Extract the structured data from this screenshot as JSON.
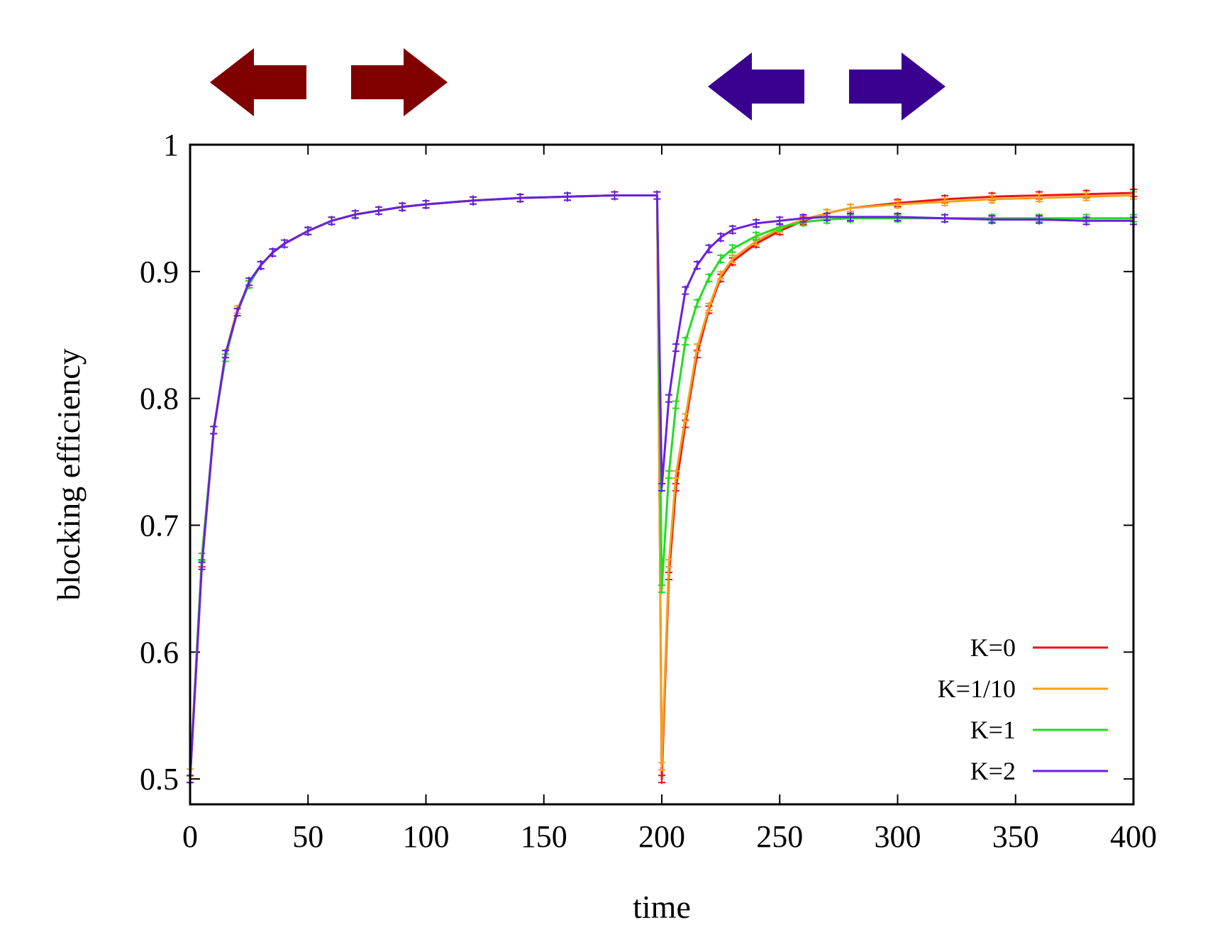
{
  "chart_data": {
    "type": "line",
    "title": "",
    "xlabel": "time",
    "ylabel": "blocking efficiency",
    "xlim": [
      0,
      400
    ],
    "ylim": [
      0.48,
      1.0
    ],
    "xticks": [
      0,
      50,
      100,
      150,
      200,
      250,
      300,
      350,
      400
    ],
    "yticks": [
      0.5,
      0.6,
      0.7,
      0.8,
      0.9,
      1.0
    ],
    "xtick_labels": [
      "0",
      "50",
      "100",
      "150",
      "200",
      "250",
      "300",
      "350",
      "400"
    ],
    "ytick_labels": [
      "0.5",
      "0.6",
      "0.7",
      "0.8",
      "0.9",
      "1"
    ],
    "legend_position": "bottom-right",
    "annotations": [
      {
        "type": "double-arrow",
        "color": "#800000",
        "time_center": 60
      },
      {
        "type": "double-arrow",
        "color": "#3a0090",
        "time_center": 272
      }
    ],
    "series": [
      {
        "name": "K=0",
        "color": "#ee1111",
        "x": [
          0,
          5,
          10,
          15,
          20,
          25,
          30,
          35,
          40,
          50,
          60,
          70,
          80,
          90,
          100,
          120,
          140,
          160,
          180,
          198,
          200,
          203,
          206,
          210,
          215,
          220,
          225,
          230,
          240,
          250,
          260,
          270,
          280,
          300,
          320,
          340,
          360,
          380,
          400
        ],
        "values": [
          0.5,
          0.67,
          0.775,
          0.835,
          0.87,
          0.89,
          0.905,
          0.915,
          0.922,
          0.932,
          0.94,
          0.945,
          0.948,
          0.951,
          0.953,
          0.956,
          0.958,
          0.959,
          0.96,
          0.96,
          0.5,
          0.66,
          0.73,
          0.78,
          0.835,
          0.87,
          0.895,
          0.908,
          0.922,
          0.932,
          0.94,
          0.946,
          0.95,
          0.954,
          0.957,
          0.959,
          0.96,
          0.961,
          0.962
        ]
      },
      {
        "name": "K=1/10",
        "color": "#f2a21b",
        "x": [
          0,
          5,
          10,
          15,
          20,
          25,
          30,
          35,
          40,
          50,
          60,
          70,
          80,
          90,
          100,
          120,
          140,
          160,
          180,
          198,
          200,
          203,
          206,
          210,
          215,
          220,
          225,
          230,
          240,
          250,
          260,
          270,
          280,
          300,
          320,
          340,
          360,
          380,
          400
        ],
        "values": [
          0.505,
          0.675,
          0.775,
          0.835,
          0.87,
          0.89,
          0.905,
          0.915,
          0.922,
          0.932,
          0.94,
          0.945,
          0.948,
          0.951,
          0.953,
          0.956,
          0.958,
          0.959,
          0.96,
          0.96,
          0.51,
          0.67,
          0.74,
          0.785,
          0.84,
          0.872,
          0.897,
          0.91,
          0.924,
          0.934,
          0.941,
          0.946,
          0.95,
          0.953,
          0.955,
          0.957,
          0.958,
          0.959,
          0.96
        ]
      },
      {
        "name": "K=1",
        "color": "#22dd22",
        "x": [
          0,
          5,
          10,
          15,
          20,
          25,
          30,
          35,
          40,
          50,
          60,
          70,
          80,
          90,
          100,
          120,
          140,
          160,
          180,
          198,
          200,
          203,
          206,
          210,
          215,
          220,
          225,
          230,
          240,
          250,
          260,
          270,
          280,
          300,
          320,
          340,
          360,
          380,
          400
        ],
        "values": [
          0.5,
          0.675,
          0.775,
          0.832,
          0.868,
          0.89,
          0.905,
          0.915,
          0.922,
          0.932,
          0.94,
          0.945,
          0.948,
          0.951,
          0.953,
          0.956,
          0.958,
          0.959,
          0.96,
          0.96,
          0.65,
          0.74,
          0.795,
          0.845,
          0.875,
          0.895,
          0.91,
          0.918,
          0.928,
          0.935,
          0.939,
          0.941,
          0.942,
          0.942,
          0.942,
          0.942,
          0.942,
          0.942,
          0.942
        ]
      },
      {
        "name": "K=2",
        "color": "#6a1fe0",
        "x": [
          0,
          5,
          10,
          15,
          20,
          25,
          30,
          35,
          40,
          50,
          60,
          70,
          80,
          90,
          100,
          120,
          140,
          160,
          180,
          198,
          200,
          203,
          206,
          210,
          215,
          220,
          225,
          230,
          240,
          250,
          260,
          270,
          280,
          300,
          320,
          340,
          360,
          380,
          400
        ],
        "values": [
          0.5,
          0.668,
          0.775,
          0.835,
          0.868,
          0.892,
          0.905,
          0.915,
          0.922,
          0.932,
          0.94,
          0.945,
          0.948,
          0.951,
          0.953,
          0.956,
          0.958,
          0.959,
          0.96,
          0.96,
          0.73,
          0.8,
          0.84,
          0.885,
          0.905,
          0.918,
          0.927,
          0.933,
          0.938,
          0.94,
          0.942,
          0.943,
          0.943,
          0.943,
          0.942,
          0.941,
          0.941,
          0.94,
          0.94
        ]
      }
    ]
  }
}
